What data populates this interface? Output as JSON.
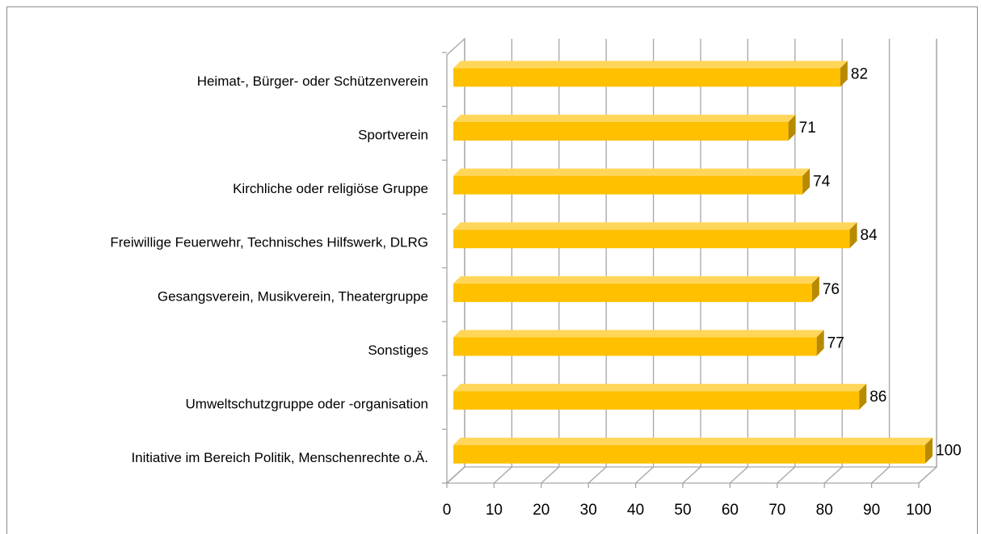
{
  "chart_data": {
    "type": "bar",
    "orientation": "horizontal",
    "three_d": true,
    "categories": [
      "Heimat-, Bürger- oder Schützenverein",
      "Sportverein",
      "Kirchliche oder religiöse Gruppe",
      "Freiwillige Feuerwehr, Technisches Hilfswerk, DLRG",
      "Gesangsverein, Musikverein, Theatergruppe",
      "Sonstiges",
      "Umweltschutzgruppe oder -organisation",
      "Initiative im Bereich Politik, Menschenrechte o.Ä."
    ],
    "values": [
      82,
      71,
      74,
      84,
      76,
      77,
      86,
      100
    ],
    "color": "#ffc000",
    "xlim": [
      0,
      100
    ],
    "xticks": [
      0,
      10,
      20,
      30,
      40,
      50,
      60,
      70,
      80,
      90,
      100
    ],
    "grid": true
  }
}
